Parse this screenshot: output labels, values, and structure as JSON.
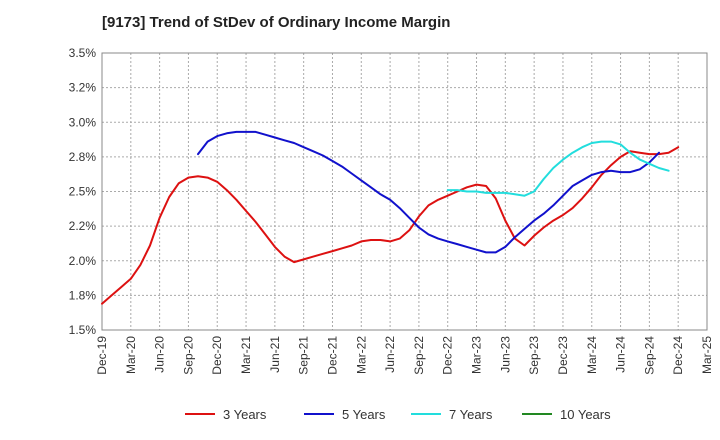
{
  "chart_data": {
    "type": "line",
    "title": "[9173]  Trend of StDev of Ordinary Income Margin",
    "xlabel": "",
    "ylabel": "",
    "ylim": [
      1.5,
      3.5
    ],
    "y_ticks": [
      1.5,
      1.75,
      2.0,
      2.25,
      2.5,
      2.75,
      3.0,
      3.25,
      3.5
    ],
    "y_tick_labels": [
      "1.5%",
      "1.8%",
      "2.0%",
      "2.2%",
      "2.5%",
      "2.8%",
      "3.0%",
      "3.2%",
      "3.5%"
    ],
    "x_tick_labels": [
      "Dec-19",
      "Mar-20",
      "Jun-20",
      "Sep-20",
      "Dec-20",
      "Mar-21",
      "Jun-21",
      "Sep-21",
      "Dec-21",
      "Mar-22",
      "Jun-22",
      "Sep-22",
      "Dec-22",
      "Mar-23",
      "Jun-23",
      "Sep-23",
      "Dec-23",
      "Mar-24",
      "Jun-24",
      "Sep-24",
      "Dec-24",
      "Mar-25"
    ],
    "grid": true,
    "legend_position": "bottom",
    "series": [
      {
        "name": "3 Years",
        "color": "#dd1111",
        "values": [
          1.69,
          1.75,
          1.81,
          1.87,
          1.97,
          2.11,
          2.31,
          2.46,
          2.56,
          2.6,
          2.61,
          2.6,
          2.57,
          2.51,
          2.44,
          2.36,
          2.28,
          2.19,
          2.1,
          2.03,
          1.99,
          2.01,
          2.03,
          2.05,
          2.07,
          2.09,
          2.11,
          2.14,
          2.15,
          2.15,
          2.14,
          2.16,
          2.22,
          2.32,
          2.4,
          2.44,
          2.47,
          2.5,
          2.53,
          2.55,
          2.54,
          2.45,
          2.29,
          2.16,
          2.11,
          2.18,
          2.24,
          2.29,
          2.33,
          2.38,
          2.45,
          2.53,
          2.62,
          2.69,
          2.75,
          2.79,
          2.78,
          2.77,
          2.77,
          2.78,
          2.82
        ]
      },
      {
        "name": "5 Years",
        "color": "#1111cc",
        "values": [
          null,
          null,
          null,
          null,
          null,
          null,
          null,
          null,
          null,
          null,
          2.77,
          2.86,
          2.9,
          2.92,
          2.93,
          2.93,
          2.93,
          2.91,
          2.89,
          2.87,
          2.85,
          2.82,
          2.79,
          2.76,
          2.72,
          2.68,
          2.63,
          2.58,
          2.53,
          2.48,
          2.44,
          2.38,
          2.31,
          2.24,
          2.19,
          2.16,
          2.14,
          2.12,
          2.1,
          2.08,
          2.06,
          2.06,
          2.1,
          2.17,
          2.23,
          2.29,
          2.34,
          2.4,
          2.47,
          2.54,
          2.58,
          2.62,
          2.64,
          2.65,
          2.64,
          2.64,
          2.66,
          2.71,
          2.78
        ]
      },
      {
        "name": "7 Years",
        "color": "#22dddd",
        "values": [
          null,
          null,
          null,
          null,
          null,
          null,
          null,
          null,
          null,
          null,
          null,
          null,
          null,
          null,
          null,
          null,
          null,
          null,
          null,
          null,
          null,
          null,
          null,
          null,
          null,
          null,
          null,
          null,
          null,
          null,
          null,
          null,
          null,
          null,
          null,
          null,
          2.51,
          2.51,
          2.5,
          2.5,
          2.49,
          2.49,
          2.49,
          2.48,
          2.47,
          2.5,
          2.59,
          2.67,
          2.73,
          2.78,
          2.82,
          2.85,
          2.86,
          2.86,
          2.84,
          2.78,
          2.73,
          2.7,
          2.67,
          2.65
        ]
      },
      {
        "name": "10 Years",
        "color": "#228822",
        "values": []
      }
    ]
  }
}
